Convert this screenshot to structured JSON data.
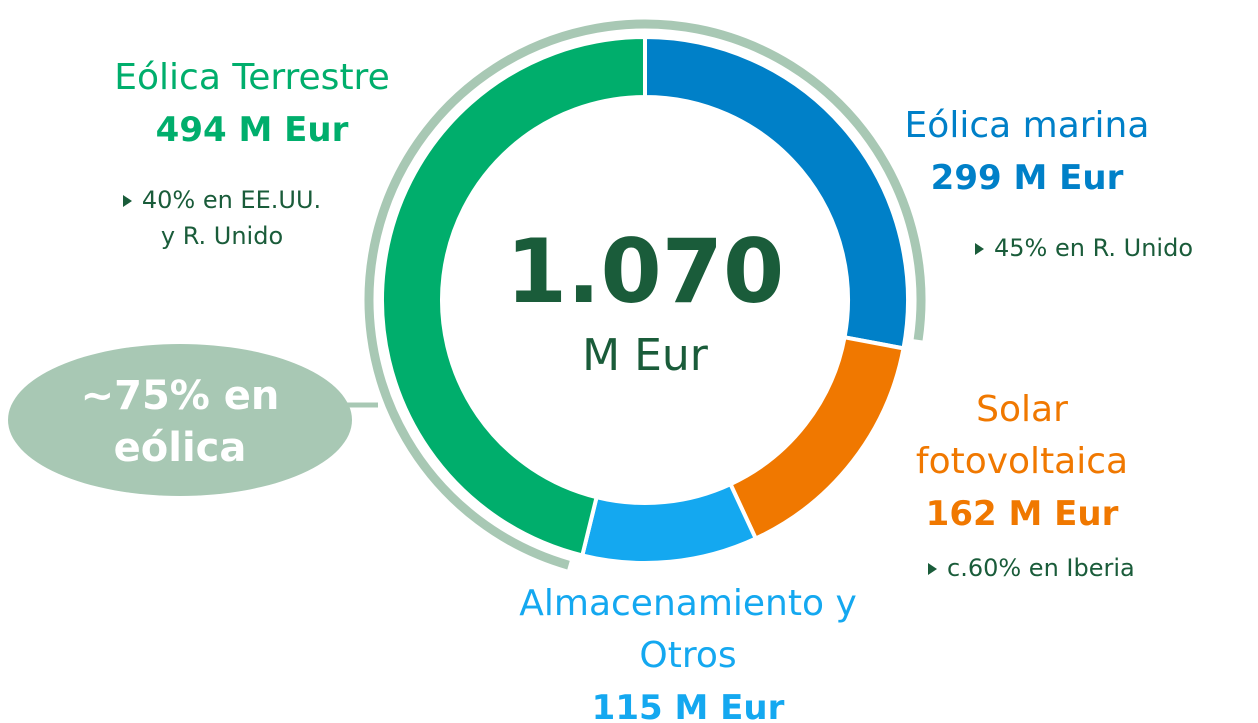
{
  "chart_data": {
    "type": "donut",
    "center_value": "1.070",
    "center_unit": "M Eur",
    "annotation": "~75% en eólica",
    "categories": [
      "Eólica marina",
      "Solar fotovoltaica",
      "Almacenamiento y Otros",
      "Eólica Terrestre"
    ],
    "values": [
      299,
      162,
      115,
      494
    ],
    "value_labels": [
      "299 M Eur",
      "162 M Eur",
      "115 M Eur",
      "494 M Eur"
    ],
    "colors": [
      "#0080c8",
      "#f07800",
      "#14a8f0",
      "#00ae6c"
    ],
    "notes": [
      "45% en R. Unido",
      "c.60% en Iberia",
      null,
      "40% en EE.UU. y R. Unido"
    ]
  }
}
